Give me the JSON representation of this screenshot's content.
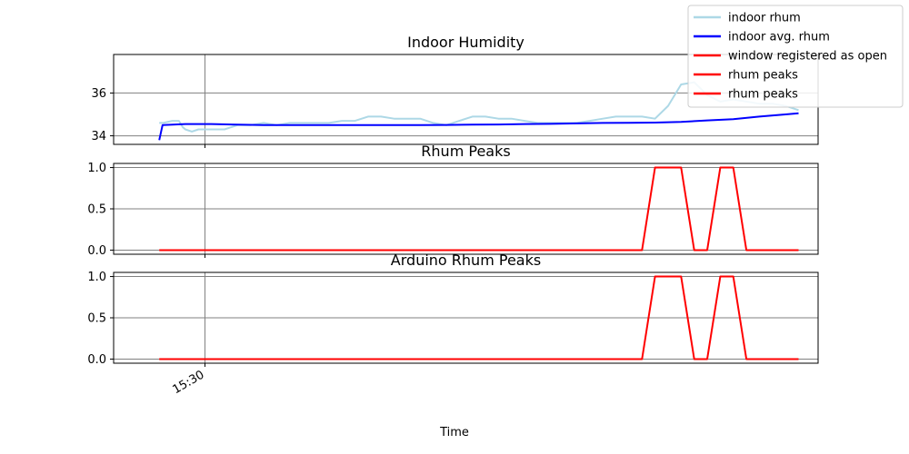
{
  "figure": {
    "xlabel": "Time",
    "xtick_label": "15:30"
  },
  "legend": {
    "placement": "top-right",
    "entries": [
      {
        "label": "indoor rhum",
        "color": "#add8e6"
      },
      {
        "label": "indoor avg. rhum",
        "color": "#0000ff"
      },
      {
        "label": "window registered as open",
        "color": "#ff0000"
      },
      {
        "label": "rhum peaks",
        "color": "#ff0000"
      },
      {
        "label": "rhum peaks",
        "color": "#ff0000"
      }
    ]
  },
  "chart_data": [
    {
      "type": "line",
      "title": "Indoor Humidity",
      "x_unit": "minutes",
      "xlim": [
        -3.5,
        50.5
      ],
      "ylim": [
        33.6,
        37.8
      ],
      "yticks": [
        34,
        36
      ],
      "ytick_labels": [
        "34",
        "36"
      ],
      "xgrid": [
        3.5
      ],
      "grid": true,
      "series": [
        {
          "name": "indoor rhum",
          "color": "#add8e6",
          "x": [
            0,
            0.3,
            1,
            1.5,
            1.8,
            2,
            2.5,
            3,
            4,
            5,
            6,
            7,
            8,
            9,
            10,
            11,
            12,
            13,
            14,
            15,
            16,
            17,
            18,
            19,
            20,
            21,
            22,
            23,
            24,
            25,
            26,
            27,
            28,
            29,
            30,
            31,
            32,
            33,
            34,
            35,
            36,
            37,
            38,
            39,
            40,
            41,
            42,
            43,
            44,
            45,
            46,
            47,
            48,
            49
          ],
          "y": [
            34.6,
            34.6,
            34.7,
            34.7,
            34.4,
            34.3,
            34.2,
            34.3,
            34.3,
            34.3,
            34.5,
            34.5,
            34.6,
            34.5,
            34.6,
            34.6,
            34.6,
            34.6,
            34.7,
            34.7,
            34.9,
            34.9,
            34.8,
            34.8,
            34.8,
            34.6,
            34.5,
            34.7,
            34.9,
            34.9,
            34.8,
            34.8,
            34.7,
            34.6,
            34.6,
            34.6,
            34.6,
            34.7,
            34.8,
            34.9,
            34.9,
            34.9,
            34.8,
            35.4,
            36.4,
            36.5,
            35.9,
            35.6,
            35.7,
            35.6,
            35.5,
            35.5,
            35.4,
            35.2
          ]
        },
        {
          "name": "indoor avg. rhum",
          "color": "#0000ff",
          "x": [
            0,
            0.25,
            2,
            4,
            6,
            8,
            10,
            12,
            14,
            16,
            18,
            20,
            22,
            24,
            26,
            28,
            30,
            32,
            34,
            36,
            38,
            40,
            42,
            44,
            46,
            48,
            49
          ],
          "y": [
            33.8,
            34.5,
            34.55,
            34.55,
            34.52,
            34.5,
            34.5,
            34.5,
            34.5,
            34.5,
            34.5,
            34.5,
            34.51,
            34.52,
            34.53,
            34.55,
            34.56,
            34.58,
            34.6,
            34.61,
            34.62,
            34.65,
            34.72,
            34.78,
            34.9,
            35.0,
            35.05
          ]
        }
      ]
    },
    {
      "type": "line",
      "title": "Rhum Peaks",
      "x_unit": "minutes",
      "xlim": [
        -3.5,
        50.5
      ],
      "ylim": [
        -0.05,
        1.05
      ],
      "yticks": [
        0,
        0.5,
        1
      ],
      "ytick_labels": [
        "0.0",
        "0.5",
        "1.0"
      ],
      "grid": true,
      "series": [
        {
          "name": "rhum peaks",
          "color": "#ff0000",
          "x": [
            0,
            37,
            38,
            40,
            41,
            42,
            43,
            44,
            45,
            46,
            47,
            49
          ],
          "y": [
            0,
            0,
            1,
            1,
            0,
            0,
            1,
            1,
            0,
            0,
            0,
            0
          ]
        }
      ]
    },
    {
      "type": "line",
      "title": "Arduino Rhum Peaks",
      "x_unit": "minutes",
      "xlim": [
        -3.5,
        50.5
      ],
      "ylim": [
        -0.05,
        1.05
      ],
      "yticks": [
        0,
        0.5,
        1
      ],
      "ytick_labels": [
        "0.0",
        "0.5",
        "1.0"
      ],
      "grid": true,
      "series": [
        {
          "name": "rhum peaks",
          "color": "#ff0000",
          "x": [
            0,
            37,
            38,
            40,
            41,
            42,
            43,
            44,
            45,
            46,
            47,
            49
          ],
          "y": [
            0,
            0,
            1,
            1,
            0,
            0,
            1,
            1,
            0,
            0,
            0,
            0
          ]
        }
      ]
    }
  ]
}
